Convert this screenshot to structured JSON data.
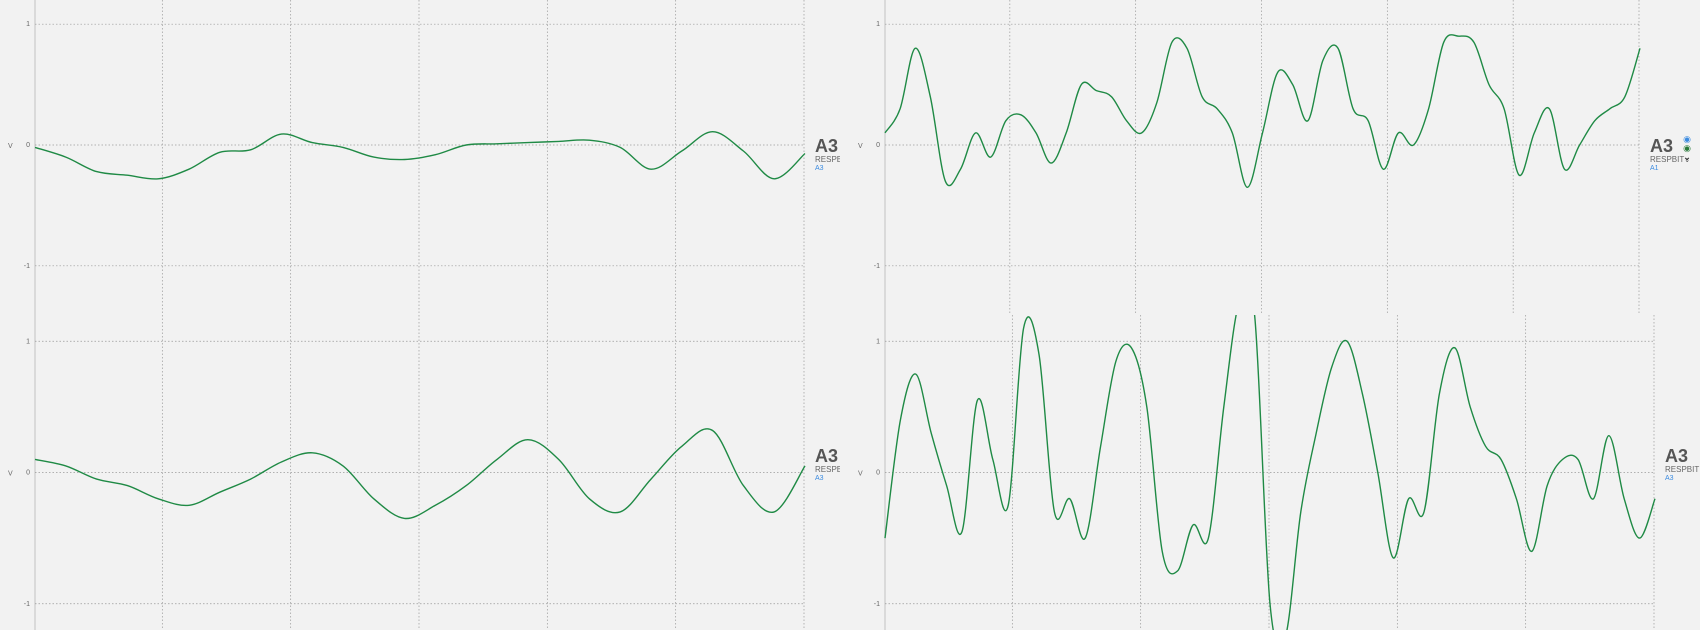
{
  "channels": [
    {
      "id": "ch-top-left",
      "name": "A3",
      "type_label": "RESPBIT",
      "sub_label": "A3",
      "unit": "V",
      "y_ticks": [
        "1",
        "0",
        "-1"
      ],
      "chart_data": {
        "type": "line",
        "ylim": [
          -1.2,
          1.2
        ],
        "x": [
          0,
          4,
          8,
          12,
          16,
          20,
          24,
          28,
          32,
          36,
          40,
          44,
          48,
          52,
          56,
          60,
          64,
          68,
          72,
          76,
          80,
          84,
          88,
          92,
          96,
          100
        ],
        "series": [
          {
            "values": [
              -0.02,
              -0.1,
              -0.22,
              -0.25,
              -0.28,
              -0.2,
              -0.06,
              -0.04,
              0.09,
              0.02,
              -0.02,
              -0.1,
              -0.12,
              -0.08,
              0.0,
              0.01,
              0.02,
              0.03,
              0.04,
              -0.02,
              -0.2,
              -0.05,
              0.11,
              -0.05,
              -0.28,
              -0.07
            ],
            "color": "#1f8a45"
          }
        ]
      }
    },
    {
      "id": "ch-top-right",
      "name": "A3",
      "type_label": "RESPBIT",
      "sub_label": "A1",
      "unit": "V",
      "y_ticks": [
        "1",
        "0",
        "-1"
      ],
      "chart_data": {
        "type": "line",
        "ylim": [
          -1.2,
          1.2
        ],
        "x": [
          0,
          2,
          4,
          6,
          8,
          10,
          12,
          14,
          16,
          18,
          20,
          22,
          24,
          26,
          28,
          30,
          32,
          34,
          36,
          38,
          40,
          42,
          44,
          46,
          48,
          50,
          52,
          54,
          56,
          58,
          60,
          62,
          64,
          66,
          68,
          70,
          72,
          74,
          76,
          78,
          80,
          82,
          84,
          86,
          88,
          90,
          92,
          94,
          96,
          98,
          100
        ],
        "series": [
          {
            "values": [
              0.1,
              0.3,
              0.8,
              0.4,
              -0.3,
              -0.2,
              0.1,
              -0.1,
              0.2,
              0.25,
              0.1,
              -0.15,
              0.1,
              0.5,
              0.45,
              0.4,
              0.2,
              0.1,
              0.35,
              0.85,
              0.8,
              0.4,
              0.3,
              0.1,
              -0.35,
              0.1,
              0.6,
              0.5,
              0.2,
              0.7,
              0.8,
              0.3,
              0.2,
              -0.2,
              0.1,
              0.0,
              0.3,
              0.85,
              0.9,
              0.85,
              0.5,
              0.3,
              -0.25,
              0.1,
              0.3,
              -0.2,
              0.0,
              0.2,
              0.3,
              0.4,
              0.8
            ],
            "color": "#1f8a45"
          }
        ]
      }
    },
    {
      "id": "ch-bottom-left",
      "name": "A3",
      "type_label": "RESPBIT",
      "sub_label": "A3",
      "unit": "V",
      "y_ticks": [
        "1",
        "0",
        "-1"
      ],
      "chart_data": {
        "type": "line",
        "ylim": [
          -1.2,
          1.2
        ],
        "x": [
          0,
          4,
          8,
          12,
          16,
          20,
          24,
          28,
          32,
          36,
          40,
          44,
          48,
          52,
          56,
          60,
          64,
          68,
          72,
          76,
          80,
          84,
          88,
          92,
          96,
          100
        ],
        "series": [
          {
            "values": [
              0.1,
              0.05,
              -0.05,
              -0.1,
              -0.2,
              -0.25,
              -0.15,
              -0.05,
              0.08,
              0.15,
              0.05,
              -0.2,
              -0.35,
              -0.25,
              -0.1,
              0.1,
              0.25,
              0.1,
              -0.2,
              -0.3,
              -0.05,
              0.2,
              0.32,
              -0.1,
              -0.3,
              0.05
            ],
            "color": "#1f8a45"
          }
        ]
      }
    },
    {
      "id": "ch-bottom-right",
      "name": "A3",
      "type_label": "RESPBIT",
      "sub_label": "A3",
      "unit": "V",
      "y_ticks": [
        "1",
        "0",
        "-1"
      ],
      "chart_data": {
        "type": "line",
        "ylim": [
          -1.2,
          1.2
        ],
        "x": [
          0,
          2,
          4,
          6,
          8,
          10,
          12,
          14,
          16,
          18,
          20,
          22,
          24,
          26,
          28,
          30,
          32,
          34,
          36,
          38,
          40,
          42,
          44,
          46,
          48,
          50,
          52,
          54,
          56,
          58,
          60,
          62,
          64,
          66,
          68,
          70,
          72,
          74,
          76,
          78,
          80,
          82,
          84,
          86,
          88,
          90,
          92,
          94,
          96,
          98,
          100
        ],
        "series": [
          {
            "values": [
              -0.5,
              0.4,
              0.75,
              0.3,
              -0.1,
              -0.45,
              0.55,
              0.1,
              -0.25,
              1.1,
              0.9,
              -0.3,
              -0.2,
              -0.5,
              0.2,
              0.85,
              0.95,
              0.5,
              -0.6,
              -0.75,
              -0.4,
              -0.5,
              0.5,
              1.3,
              1.2,
              -1.0,
              -1.25,
              -0.3,
              0.3,
              0.8,
              1.0,
              0.6,
              0.0,
              -0.65,
              -0.2,
              -0.3,
              0.6,
              0.95,
              0.5,
              0.2,
              0.1,
              -0.2,
              -0.6,
              -0.1,
              0.1,
              0.1,
              -0.2,
              0.28,
              -0.2,
              -0.5,
              -0.2
            ],
            "color": "#1f8a45"
          }
        ]
      }
    }
  ]
}
